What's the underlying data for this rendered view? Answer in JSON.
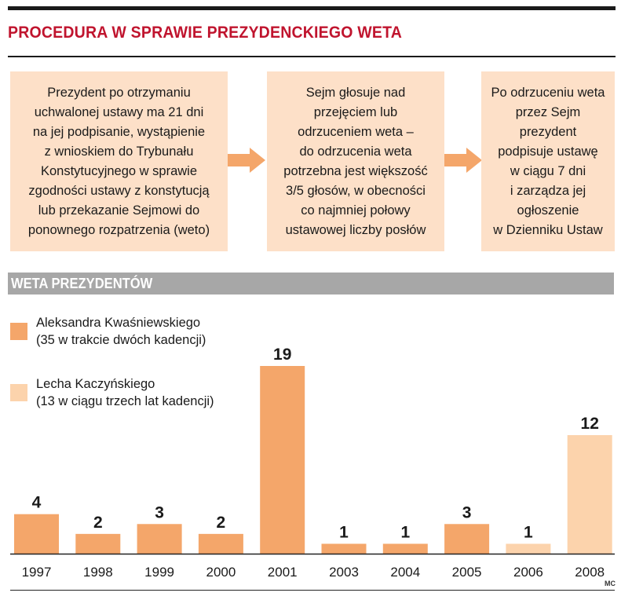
{
  "header": {
    "title": "PROCEDURA W SPRAWIE PREZYDENCKIEGO WETA"
  },
  "procedure": {
    "steps": [
      "Prezydent po otrzymaniu\nuchwalonej ustawy ma 21 dni\nna jej podpisanie, wystąpienie\nz wnioskiem do Trybunału\nKonstytucyjnego w sprawie\nzgodności ustawy z konstytucją\nlub przekazanie Sejmowi do\nponownego rozpatrzenia (weto)",
      "Sejm głosuje nad\nprzejęciem lub\nodrzuceniem weta –\ndo odrzucenia weta\npotrzebna jest większość\n3/5 głosów, w obecności\nco najmniej połowy\nustawowej liczby posłów",
      "Po odrzuceniu weta\nprzez Sejm\nprezydent\npodpisuje ustawę\nw ciągu 7 dni\ni zarządza jej\nogłoszenie\nw Dzienniku Ustaw"
    ]
  },
  "section": {
    "title": "WETA PREZYDENTÓW"
  },
  "legend": {
    "items": [
      {
        "line1": "Aleksandra Kwaśniewskiego",
        "line2": "(35 w trakcie dwóch kadencji)"
      },
      {
        "line1": "Lecha Kaczyńskiego",
        "line2": "(13 w ciągu trzech lat kadencji)"
      }
    ]
  },
  "colors": {
    "title": "#c0142e",
    "box_fill": "#fde0c8",
    "arrow": "#f4a66a",
    "kwasniewski": "#f4a66a",
    "kaczynski": "#fcd3ac",
    "section_bar": "#a7a7a7",
    "axis": "#222222"
  },
  "chart_data": {
    "type": "bar",
    "title": "WETA PREZYDENTÓW",
    "xlabel": "",
    "ylabel": "",
    "grid": false,
    "legend_position": "top-left",
    "categories": [
      "1997",
      "1998",
      "1999",
      "2000",
      "2001",
      "2003",
      "2004",
      "2005",
      "2006",
      "2008"
    ],
    "values": [
      4,
      2,
      3,
      2,
      19,
      1,
      1,
      3,
      1,
      12
    ],
    "president": [
      "Kwaśniewski",
      "Kwaśniewski",
      "Kwaśniewski",
      "Kwaśniewski",
      "Kwaśniewski",
      "Kwaśniewski",
      "Kwaśniewski",
      "Kwaśniewski",
      "Kaczyński",
      "Kaczyński"
    ],
    "series": [
      {
        "name": "Aleksandra Kwaśniewskiego",
        "values": [
          4,
          2,
          3,
          2,
          19,
          1,
          1,
          3,
          null,
          null
        ]
      },
      {
        "name": "Lecha Kaczyńskiego",
        "values": [
          null,
          null,
          null,
          null,
          null,
          null,
          null,
          null,
          1,
          12
        ]
      }
    ],
    "ylim": [
      0,
      19
    ]
  },
  "footer": {
    "credit": "MC"
  }
}
